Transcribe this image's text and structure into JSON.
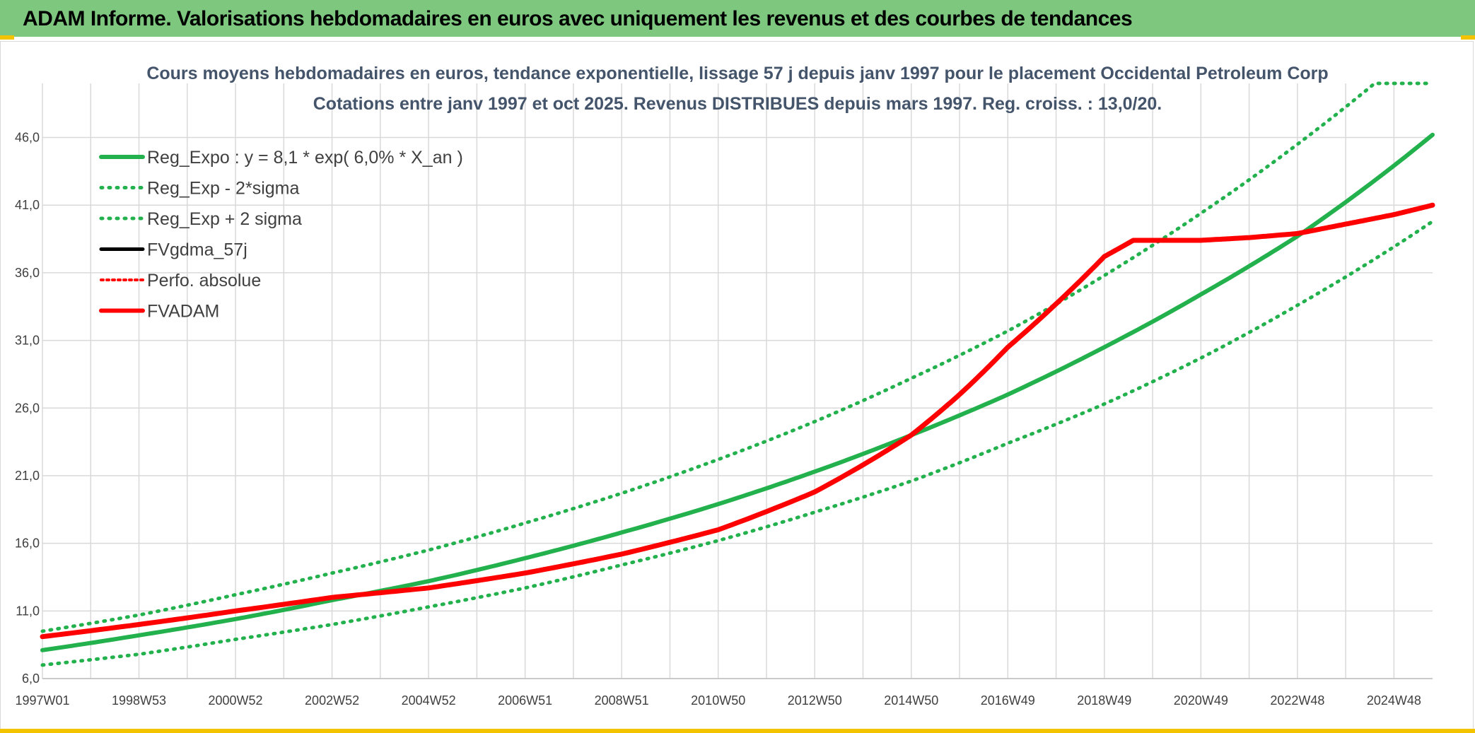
{
  "banner": {
    "title": "ADAM Informe. Valorisations hebdomadaires en euros avec uniquement les revenus et des courbes de tendances"
  },
  "colors": {
    "banner_bg": "#7dc77f",
    "accent_yellow": "#f3c300",
    "reg_expo": "#22b14c",
    "fvadam": "#ff0000",
    "grid": "#d9d9d9",
    "title_text": "#44546a"
  },
  "chart_data": {
    "type": "line",
    "title_line1": "Cours moyens hebdomadaires en euros, tendance exponentielle, lissage 57 j depuis janv 1997 pour le placement Occidental Petroleum Corp",
    "title_line2": "Cotations entre janv 1997 et oct 2025. Revenus DISTRIBUES depuis mars 1997. Reg. croiss. : 13,0/20.",
    "xlabel": "",
    "ylabel": "",
    "x_range": [
      1997.0,
      2025.8
    ],
    "ylim": [
      6.0,
      50.0
    ],
    "y_ticks": [
      "6,0",
      "11,0",
      "16,0",
      "21,0",
      "26,0",
      "31,0",
      "36,0",
      "41,0",
      "46,0"
    ],
    "y_tick_values": [
      6,
      11,
      16,
      21,
      26,
      31,
      36,
      41,
      46
    ],
    "x_ticks": [
      "1997W01",
      "1998W53",
      "2000W52",
      "2002W52",
      "2004W52",
      "2006W51",
      "2008W51",
      "2010W50",
      "2012W50",
      "2014W50",
      "2016W49",
      "2018W49",
      "2020W49",
      "2022W48",
      "2024W48"
    ],
    "x_tick_values": [
      1997.0,
      1999.0,
      2001.0,
      2003.0,
      2005.0,
      2007.0,
      2009.0,
      2011.0,
      2013.0,
      2015.0,
      2017.0,
      2019.0,
      2021.0,
      2023.0,
      2025.0
    ],
    "legend": [
      {
        "label": "Reg_Expo : y = 8,1 * exp( 6,0% *  X_an )",
        "style": "solid-green"
      },
      {
        "label": "Reg_Exp - 2*sigma",
        "style": "dotted-green"
      },
      {
        "label": "Reg_Exp + 2 sigma",
        "style": "dotted-green"
      },
      {
        "label": "FVgdma_57j",
        "style": "solid-black"
      },
      {
        "label": "Perfo. absolue",
        "style": "dotted-red"
      },
      {
        "label": "FVADAM",
        "style": "solid-red"
      }
    ],
    "series": [
      {
        "name": "Reg_Expo",
        "x": [
          1997.0,
          1999.0,
          2001.0,
          2003.0,
          2005.0,
          2007.0,
          2009.0,
          2011.0,
          2013.0,
          2015.0,
          2017.0,
          2019.0,
          2021.0,
          2023.0,
          2025.8
        ],
        "values": [
          8.1,
          9.2,
          10.4,
          11.8,
          13.2,
          14.9,
          16.8,
          18.9,
          21.3,
          24.0,
          27.0,
          30.5,
          34.4,
          38.7,
          46.2
        ]
      },
      {
        "name": "Reg_Exp - 2*sigma",
        "x": [
          1997.0,
          1999.0,
          2001.0,
          2003.0,
          2005.0,
          2007.0,
          2009.0,
          2011.0,
          2013.0,
          2015.0,
          2017.0,
          2019.0,
          2021.0,
          2023.0,
          2025.8
        ],
        "values": [
          7.0,
          7.8,
          8.9,
          10.0,
          11.3,
          12.7,
          14.4,
          16.2,
          18.3,
          20.6,
          23.4,
          26.3,
          29.7,
          33.6,
          39.8
        ]
      },
      {
        "name": "Reg_Exp + 2 sigma",
        "x": [
          1997.0,
          1999.0,
          2001.0,
          2003.0,
          2005.0,
          2007.0,
          2009.0,
          2011.0,
          2013.0,
          2015.0,
          2017.0,
          2019.0,
          2021.0,
          2023.0,
          2024.6,
          2025.8
        ],
        "values": [
          9.5,
          10.7,
          12.2,
          13.8,
          15.5,
          17.5,
          19.7,
          22.2,
          25.0,
          28.2,
          31.7,
          35.8,
          40.4,
          45.5,
          50.0,
          50.0
        ]
      },
      {
        "name": "FVADAM",
        "x": [
          1997.0,
          1999.0,
          2001.0,
          2003.0,
          2005.0,
          2007.0,
          2009.0,
          2011.0,
          2013.0,
          2015.0,
          2016.0,
          2017.0,
          2018.0,
          2019.0,
          2019.6,
          2020.0,
          2021.0,
          2022.0,
          2023.0,
          2024.0,
          2025.0,
          2025.8
        ],
        "values": [
          9.1,
          10.0,
          11.0,
          12.0,
          12.7,
          13.8,
          15.2,
          17.0,
          19.8,
          24.0,
          27.0,
          30.5,
          33.7,
          37.2,
          38.4,
          38.4,
          38.4,
          38.6,
          38.9,
          39.6,
          40.3,
          41.0
        ]
      }
    ]
  }
}
